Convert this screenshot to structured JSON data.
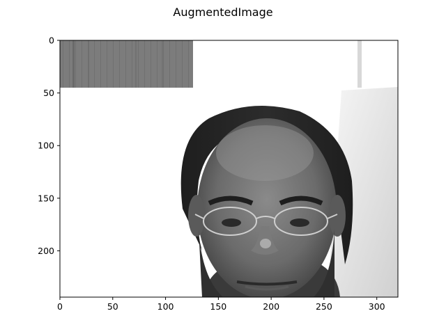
{
  "figure": {
    "title": "AugmentedImage"
  },
  "image": {
    "description_icon": "grayscale-portrait-man-with-glasses",
    "shape_rows": 244,
    "shape_cols": 320
  },
  "axes": {
    "x_ticks": [
      0,
      50,
      100,
      150,
      200,
      250,
      300
    ],
    "y_ticks": [
      0,
      50,
      100,
      150,
      200
    ],
    "xlim": [
      0,
      320
    ],
    "ylim": [
      244,
      0
    ]
  },
  "colors": {
    "background": "#ffffff",
    "frame": "#000000",
    "gray_patch": "#7c7c7c"
  }
}
